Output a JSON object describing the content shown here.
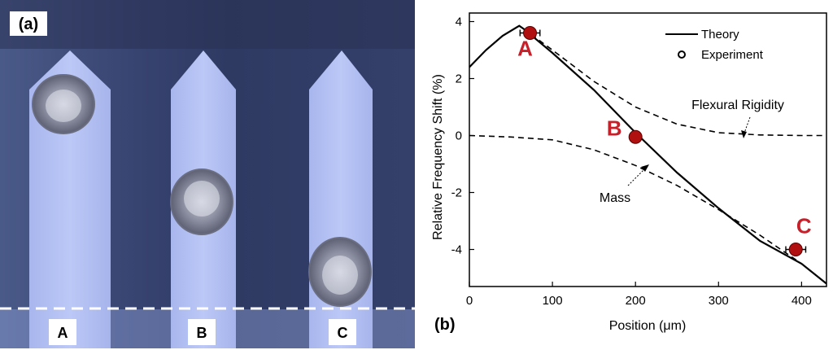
{
  "panel_a": {
    "label": "(a)",
    "cantilevers": [
      {
        "label": "A"
      },
      {
        "label": "B"
      },
      {
        "label": "C"
      }
    ]
  },
  "panel_b": {
    "label": "(b)"
  },
  "chart_data": {
    "type": "line",
    "xlabel": "Position (μm)",
    "ylabel": "Relative Frequency Shift (%)",
    "xlim": [
      0,
      430
    ],
    "ylim": [
      -5.3,
      4.3
    ],
    "xticks": [
      0,
      100,
      200,
      300,
      400
    ],
    "yticks": [
      4,
      2,
      0,
      -2,
      -4
    ],
    "grid": false,
    "legend": {
      "position": "top-right",
      "entries": [
        {
          "label": "Theory",
          "style": "solid-line"
        },
        {
          "label": "Experiment",
          "style": "open-circle"
        }
      ]
    },
    "series": [
      {
        "name": "Theory",
        "style": "solid",
        "x": [
          0,
          20,
          40,
          60,
          65,
          100,
          150,
          200,
          250,
          300,
          350,
          400,
          430
        ],
        "y": [
          2.4,
          3.0,
          3.5,
          3.85,
          3.75,
          2.9,
          1.6,
          0.1,
          -1.3,
          -2.55,
          -3.7,
          -4.5,
          -5.2
        ]
      },
      {
        "name": "Flexural Rigidity",
        "style": "dashed",
        "x": [
          65,
          100,
          150,
          200,
          250,
          300,
          350,
          400,
          430
        ],
        "y": [
          3.75,
          3.0,
          1.9,
          1.0,
          0.4,
          0.1,
          0.02,
          0.0,
          0.0
        ]
      },
      {
        "name": "Mass",
        "style": "dashed",
        "x": [
          0,
          50,
          100,
          150,
          200,
          250,
          300,
          350,
          400,
          430
        ],
        "y": [
          0.0,
          -0.05,
          -0.15,
          -0.5,
          -1.05,
          -1.75,
          -2.6,
          -3.5,
          -4.5,
          -5.2
        ]
      },
      {
        "name": "Experiment",
        "style": "points",
        "points": [
          {
            "label": "A",
            "x": 73,
            "y": 3.6,
            "xerr": 12
          },
          {
            "label": "B",
            "x": 200,
            "y": -0.05,
            "xerr": 0
          },
          {
            "label": "C",
            "x": 393,
            "y": -4.0,
            "xerr": 12
          }
        ]
      }
    ],
    "annotations": [
      {
        "text": "Flexural Rigidity",
        "x": 330,
        "y": 0.15
      },
      {
        "text": "Mass",
        "x": 210,
        "y": -0.8
      }
    ],
    "colors": {
      "experiment_point": "#b01010",
      "point_label": "#c8202a",
      "line": "#000000"
    }
  }
}
